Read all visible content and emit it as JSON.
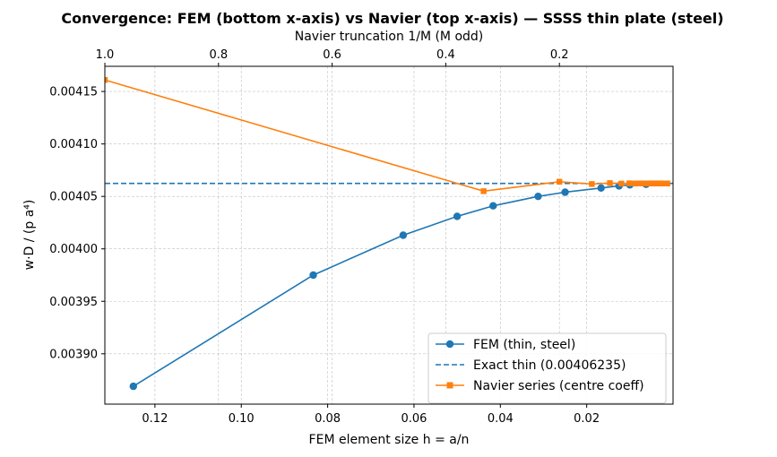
{
  "chart_data": {
    "type": "line",
    "title": "Convergence: FEM (bottom x-axis) vs Navier (top x-axis) — SSSS thin plate (steel)",
    "xlabel": "FEM element size  h = a/n",
    "x2label": "Navier truncation  1/M  (M odd)",
    "ylabel": "w·D / (p a⁴)",
    "xlim": [
      0.1316,
      0.0
    ],
    "x2lim": [
      1.0,
      0.0
    ],
    "ylim": [
      0.003852,
      0.004174
    ],
    "xticks": [
      {
        "v": 0.12,
        "label": "0.12"
      },
      {
        "v": 0.1,
        "label": "0.10"
      },
      {
        "v": 0.08,
        "label": "0.08"
      },
      {
        "v": 0.06,
        "label": "0.06"
      },
      {
        "v": 0.04,
        "label": "0.04"
      },
      {
        "v": 0.02,
        "label": "0.02"
      }
    ],
    "x2ticks": [
      {
        "v": 1.0,
        "label": "1.0"
      },
      {
        "v": 0.8,
        "label": "0.8"
      },
      {
        "v": 0.6,
        "label": "0.6"
      },
      {
        "v": 0.4,
        "label": "0.4"
      },
      {
        "v": 0.2,
        "label": "0.2"
      }
    ],
    "yticks": [
      {
        "v": 0.0039,
        "label": "0.00390"
      },
      {
        "v": 0.00395,
        "label": "0.00395"
      },
      {
        "v": 0.004,
        "label": "0.00400"
      },
      {
        "v": 0.00405,
        "label": "0.00405"
      },
      {
        "v": 0.0041,
        "label": "0.00410"
      },
      {
        "v": 0.00415,
        "label": "0.00415"
      }
    ],
    "grid": true,
    "legend_position": "bottom-right",
    "series": [
      {
        "name": "FEM (thin, steel)",
        "axis": "bottom",
        "color": "#1f77b4",
        "marker": "circle",
        "points": [
          {
            "x": 0.125,
            "y": 0.003869
          },
          {
            "x": 0.08333,
            "y": 0.003975
          },
          {
            "x": 0.0625,
            "y": 0.004013
          },
          {
            "x": 0.05,
            "y": 0.004031
          },
          {
            "x": 0.04167,
            "y": 0.004041
          },
          {
            "x": 0.03125,
            "y": 0.00405
          },
          {
            "x": 0.025,
            "y": 0.004054
          },
          {
            "x": 0.01667,
            "y": 0.004058
          },
          {
            "x": 0.0125,
            "y": 0.00406
          },
          {
            "x": 0.01,
            "y": 0.004061
          },
          {
            "x": 0.00625,
            "y": 0.0040615
          }
        ]
      },
      {
        "name": "Exact thin (0.00406235)",
        "axis": "bottom",
        "color": "#1f77b4",
        "style": "dashed",
        "value": 0.00406235
      },
      {
        "name": "Navier series (centre coeff)",
        "axis": "top",
        "color": "#ff7f0e",
        "marker": "square",
        "points": [
          {
            "x": 1.0,
            "y": 0.004161
          },
          {
            "x": 0.3333,
            "y": 0.004055
          },
          {
            "x": 0.2,
            "y": 0.004064
          },
          {
            "x": 0.1429,
            "y": 0.0040618
          },
          {
            "x": 0.1111,
            "y": 0.0040627
          },
          {
            "x": 0.0909,
            "y": 0.0040622
          },
          {
            "x": 0.0769,
            "y": 0.0040625
          },
          {
            "x": 0.0667,
            "y": 0.0040623
          },
          {
            "x": 0.0588,
            "y": 0.0040624
          },
          {
            "x": 0.0526,
            "y": 0.0040623
          },
          {
            "x": 0.0476,
            "y": 0.0040624
          },
          {
            "x": 0.0435,
            "y": 0.0040623
          },
          {
            "x": 0.04,
            "y": 0.0040624
          },
          {
            "x": 0.037,
            "y": 0.0040623
          },
          {
            "x": 0.0345,
            "y": 0.0040624
          },
          {
            "x": 0.0323,
            "y": 0.0040623
          },
          {
            "x": 0.0303,
            "y": 0.0040623
          },
          {
            "x": 0.0286,
            "y": 0.0040624
          },
          {
            "x": 0.027,
            "y": 0.0040623
          },
          {
            "x": 0.0256,
            "y": 0.0040623
          },
          {
            "x": 0.0244,
            "y": 0.0040624
          },
          {
            "x": 0.0233,
            "y": 0.0040623
          },
          {
            "x": 0.0222,
            "y": 0.0040623
          },
          {
            "x": 0.0213,
            "y": 0.0040623
          },
          {
            "x": 0.0204,
            "y": 0.0040623
          },
          {
            "x": 0.0196,
            "y": 0.0040623
          },
          {
            "x": 0.0189,
            "y": 0.0040623
          },
          {
            "x": 0.0182,
            "y": 0.0040623
          },
          {
            "x": 0.0175,
            "y": 0.0040623
          },
          {
            "x": 0.0169,
            "y": 0.0040623
          },
          {
            "x": 0.0164,
            "y": 0.0040623
          },
          {
            "x": 0.0159,
            "y": 0.0040623
          },
          {
            "x": 0.0154,
            "y": 0.0040623
          },
          {
            "x": 0.0149,
            "y": 0.0040623
          },
          {
            "x": 0.0145,
            "y": 0.0040623
          },
          {
            "x": 0.0141,
            "y": 0.0040623
          },
          {
            "x": 0.0137,
            "y": 0.0040623
          },
          {
            "x": 0.0133,
            "y": 0.0040623
          },
          {
            "x": 0.013,
            "y": 0.0040623
          },
          {
            "x": 0.0127,
            "y": 0.0040623
          },
          {
            "x": 0.0123,
            "y": 0.0040623
          },
          {
            "x": 0.012,
            "y": 0.0040623
          },
          {
            "x": 0.0118,
            "y": 0.0040623
          },
          {
            "x": 0.0115,
            "y": 0.0040623
          },
          {
            "x": 0.0112,
            "y": 0.0040623
          },
          {
            "x": 0.011,
            "y": 0.0040623
          },
          {
            "x": 0.0108,
            "y": 0.0040623
          },
          {
            "x": 0.0105,
            "y": 0.0040623
          },
          {
            "x": 0.0103,
            "y": 0.0040623
          },
          {
            "x": 0.0101,
            "y": 0.0040623
          }
        ]
      }
    ]
  }
}
